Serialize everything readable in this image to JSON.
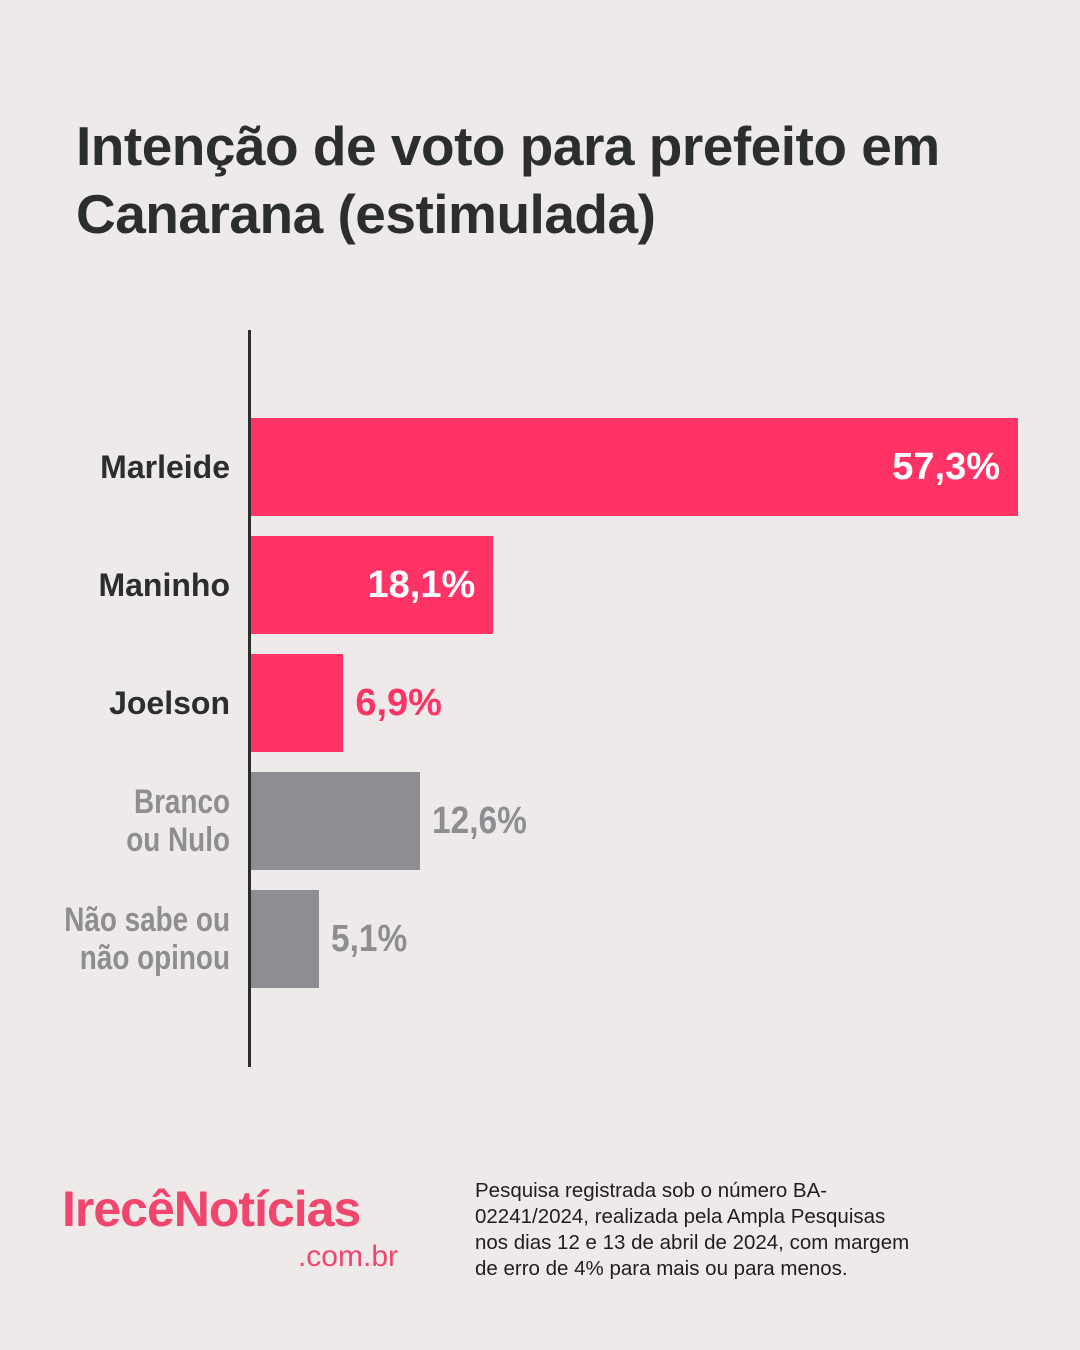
{
  "chart_data": {
    "type": "barh",
    "title": "Intenção de voto para prefeito em\nCanarana (estimulada)",
    "categories": [
      "Marleide",
      "Maninho",
      "Joelson",
      "Branco\nou Nulo",
      "Não sabe ou\nnão opinou"
    ],
    "values": [
      57.3,
      18.1,
      6.9,
      12.6,
      5.1
    ],
    "value_labels": [
      "57,3%",
      "18,1%",
      "6,9%",
      "12,6%",
      "5,1%"
    ],
    "colors": [
      "#ff3366",
      "#ff3366",
      "#ff3366",
      "#8e8d92",
      "#8e8d92"
    ],
    "label_colors": [
      "#2b2e2c",
      "#2b2e2c",
      "#2b2e2c",
      "#8e8d92",
      "#8e8d92"
    ]
  },
  "footer": {
    "logo": "IrecêNotícias",
    "logo_suffix": ".com.br",
    "note": "Pesquisa registrada sob o número BA-\n02241/2024, realizada pela Ampla Pesquisas\nnos dias 12 e 13 de abril de 2024, com margem\nde erro de 4% para mais ou para menos."
  }
}
